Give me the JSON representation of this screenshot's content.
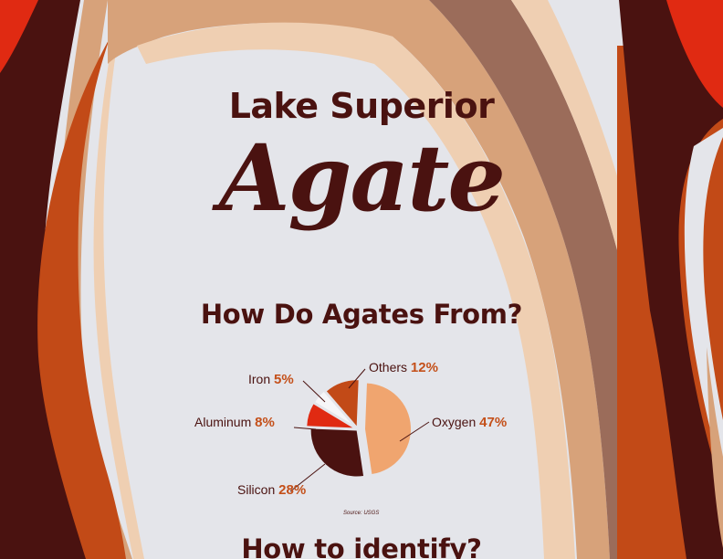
{
  "title": {
    "line1": "Lake Superior",
    "script": "Agate"
  },
  "section1": {
    "heading": "How Do Agates From?"
  },
  "section2": {
    "heading": "How to identify?"
  },
  "colors": {
    "background": "#e4e5ea",
    "dark_brown": "#4a1210",
    "red": "#e02a12",
    "rust": "#c24a17",
    "tan": "#d7a27a",
    "peach": "#f0a56f",
    "cream": "#efcfb2",
    "mocha": "#9b6c5a",
    "accent_text": "#c4501a"
  },
  "chart_data": {
    "type": "pie",
    "title": "",
    "source": "Source: USGS",
    "slices": [
      {
        "label": "Oxygen",
        "value": 47,
        "display": "47%",
        "color": "#f0a56f"
      },
      {
        "label": "Silicon",
        "value": 28,
        "display": "28%",
        "color": "#4a1210"
      },
      {
        "label": "Aluminum",
        "value": 8,
        "display": "8%",
        "color": "#e02a12"
      },
      {
        "label": "Iron",
        "value": 5,
        "display": "5%",
        "color": "#f6f6f8"
      },
      {
        "label": "Others",
        "value": 12,
        "display": "12%",
        "color": "#c24a17"
      }
    ]
  }
}
